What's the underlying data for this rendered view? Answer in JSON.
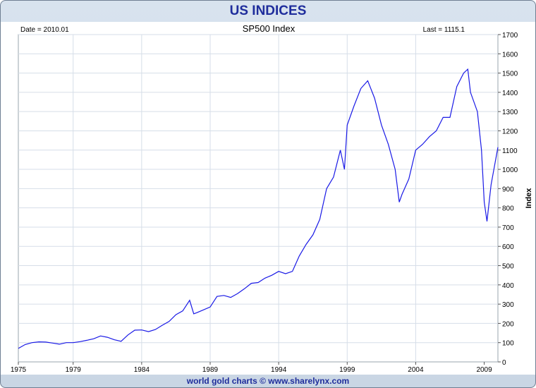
{
  "title": "US INDICES",
  "footer": "world gold charts © www.sharelynx.com",
  "colors": {
    "line": "#1a1ae6",
    "grid": "#d6dee8",
    "title": "#1f2d9c"
  },
  "chart_data": {
    "type": "line",
    "title": "SP500 Index",
    "date_label": "Date = 2010.01",
    "last_label": "Last = 1115.1",
    "ylabel": "Index",
    "xlabel": "",
    "grid": true,
    "xlim": [
      1975,
      2010
    ],
    "ylim": [
      0,
      1700
    ],
    "x_ticks": [
      "1975",
      "1979",
      "1984",
      "1989",
      "1994",
      "1999",
      "2004",
      "2009"
    ],
    "y_ticks": [
      "0",
      "100",
      "200",
      "300",
      "400",
      "500",
      "600",
      "700",
      "800",
      "900",
      "1000",
      "1100",
      "1200",
      "1300",
      "1400",
      "1500",
      "1600",
      "1700"
    ],
    "series": [
      {
        "name": "SP500",
        "x": [
          1975.0,
          1975.5,
          1976.0,
          1976.5,
          1977.0,
          1977.5,
          1978.0,
          1978.5,
          1979.0,
          1979.5,
          1980.0,
          1980.5,
          1981.0,
          1981.5,
          1982.0,
          1982.5,
          1983.0,
          1983.5,
          1984.0,
          1984.5,
          1985.0,
          1985.5,
          1986.0,
          1986.5,
          1987.0,
          1987.5,
          1987.8,
          1988.0,
          1988.5,
          1989.0,
          1989.5,
          1990.0,
          1990.5,
          1991.0,
          1991.5,
          1992.0,
          1992.5,
          1993.0,
          1993.5,
          1994.0,
          1994.5,
          1995.0,
          1995.5,
          1996.0,
          1996.5,
          1997.0,
          1997.5,
          1998.0,
          1998.5,
          1998.8,
          1999.0,
          1999.5,
          2000.0,
          2000.5,
          2001.0,
          2001.5,
          2002.0,
          2002.5,
          2002.8,
          2003.0,
          2003.5,
          2004.0,
          2004.5,
          2005.0,
          2005.5,
          2006.0,
          2006.5,
          2007.0,
          2007.5,
          2007.8,
          2008.0,
          2008.5,
          2008.8,
          2009.0,
          2009.2,
          2009.5,
          2010.0
        ],
        "values": [
          70,
          90,
          100,
          104,
          103,
          98,
          92,
          100,
          100,
          105,
          112,
          120,
          135,
          128,
          115,
          107,
          140,
          165,
          166,
          157,
          168,
          190,
          210,
          245,
          265,
          320,
          250,
          255,
          270,
          285,
          340,
          345,
          335,
          355,
          380,
          408,
          412,
          435,
          450,
          470,
          458,
          470,
          550,
          610,
          660,
          740,
          900,
          960,
          1100,
          1000,
          1230,
          1330,
          1420,
          1460,
          1370,
          1230,
          1130,
          1000,
          830,
          870,
          950,
          1100,
          1130,
          1170,
          1200,
          1270,
          1270,
          1430,
          1500,
          1520,
          1400,
          1300,
          1100,
          830,
          730,
          920,
          1115
        ]
      }
    ]
  }
}
